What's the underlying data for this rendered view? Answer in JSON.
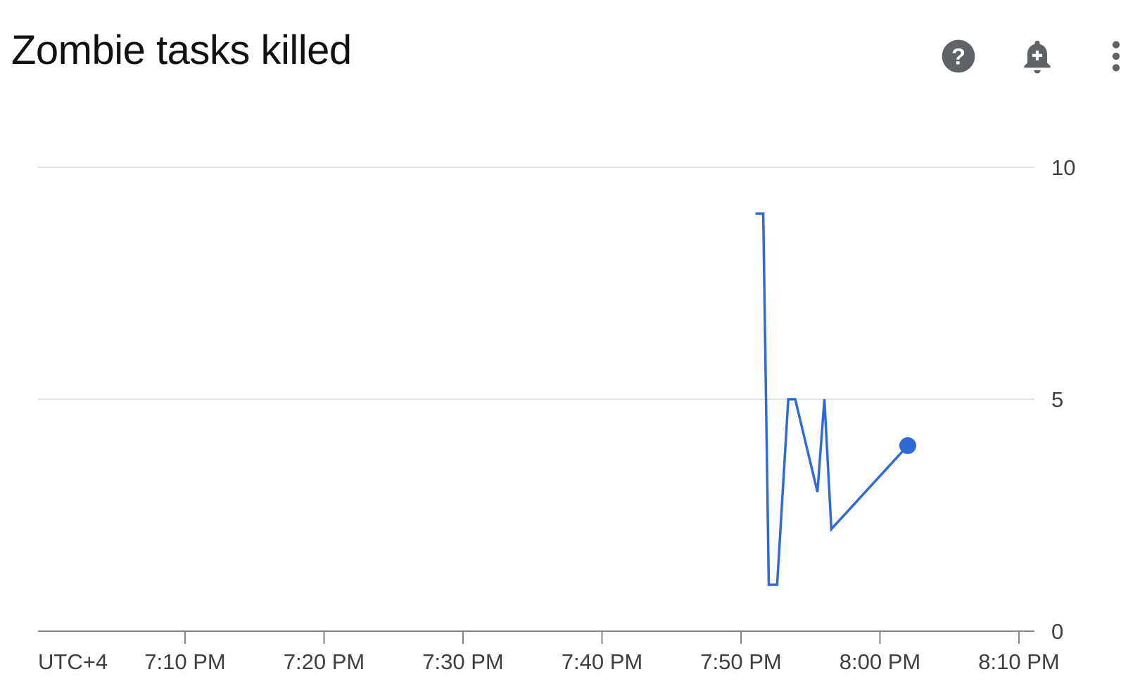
{
  "header": {
    "title": "Zombie tasks killed",
    "icons": [
      "help-icon",
      "add-alert-bell-icon",
      "more-vert-icon"
    ]
  },
  "chart_data": {
    "type": "line",
    "title": "Zombie tasks killed",
    "xlabel": "",
    "ylabel": "",
    "timezone_label": "UTC+4",
    "x_ticks": [
      "7:10 PM",
      "7:20 PM",
      "7:30 PM",
      "7:40 PM",
      "7:50 PM",
      "8:00 PM",
      "8:10 PM"
    ],
    "y_ticks": [
      "0",
      "5",
      "10"
    ],
    "ylim": [
      0,
      10
    ],
    "xlim": [
      "7:00 PM",
      "8:10 PM"
    ],
    "grid": true,
    "y_axis_side": "right",
    "series": [
      {
        "color": "#2f6bd6",
        "x": [
          "7:51:03 PM",
          "7:51:36 PM",
          "7:52:00 PM",
          "7:52:36 PM",
          "7:53:24 PM",
          "7:53:54 PM",
          "7:55:30 PM",
          "7:56:00 PM",
          "7:56:30 PM",
          "8:02:00 PM"
        ],
        "y": [
          9,
          9,
          1,
          1,
          5,
          5,
          3,
          5,
          2.2,
          4
        ]
      }
    ]
  }
}
